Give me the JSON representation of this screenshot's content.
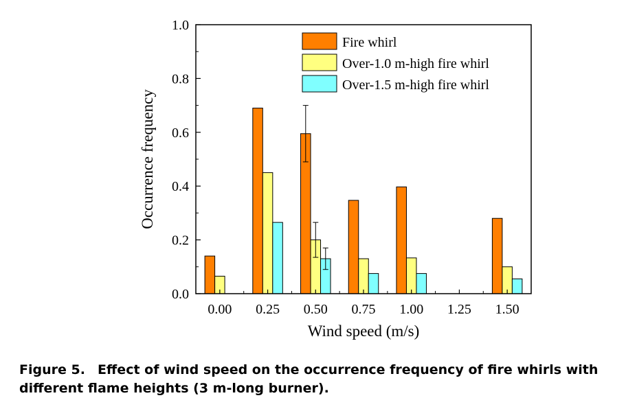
{
  "chart_data": {
    "type": "bar",
    "categories": [
      "0.00",
      "0.25",
      "0.50",
      "0.75",
      "1.00",
      "1.25",
      "1.50"
    ],
    "series": [
      {
        "name": "Fire whirl",
        "color": "#FF7F00",
        "values": [
          0.14,
          0.69,
          0.595,
          0.347,
          0.397,
          0,
          0.28
        ],
        "errors": [
          null,
          null,
          0.105,
          null,
          null,
          null,
          null
        ]
      },
      {
        "name": "Over-1.0 m-high fire whirl",
        "color": "#FFFF80",
        "values": [
          0.065,
          0.45,
          0.2,
          0.13,
          0.133,
          0,
          0.1
        ],
        "errors": [
          null,
          null,
          0.065,
          null,
          null,
          null,
          null
        ]
      },
      {
        "name": "Over-1.5 m-high fire whirl",
        "color": "#80FFFF",
        "values": [
          0,
          0.265,
          0.13,
          0.075,
          0.075,
          0,
          0.055
        ],
        "errors": [
          null,
          null,
          0.04,
          null,
          null,
          null,
          null
        ]
      }
    ],
    "xlabel": "Wind speed (m/s)",
    "ylabel": "Occurrence frequency",
    "ylim": [
      0,
      1.0
    ],
    "yticks": [
      "0.0",
      "0.2",
      "0.4",
      "0.6",
      "0.8",
      "1.0"
    ],
    "grid": false,
    "legend_position": "top-right"
  },
  "caption": {
    "label": "Figure 5.",
    "text": "Effect of wind speed on the occurrence frequency of fire whirls with different flame heights (3 m-long burner)."
  }
}
